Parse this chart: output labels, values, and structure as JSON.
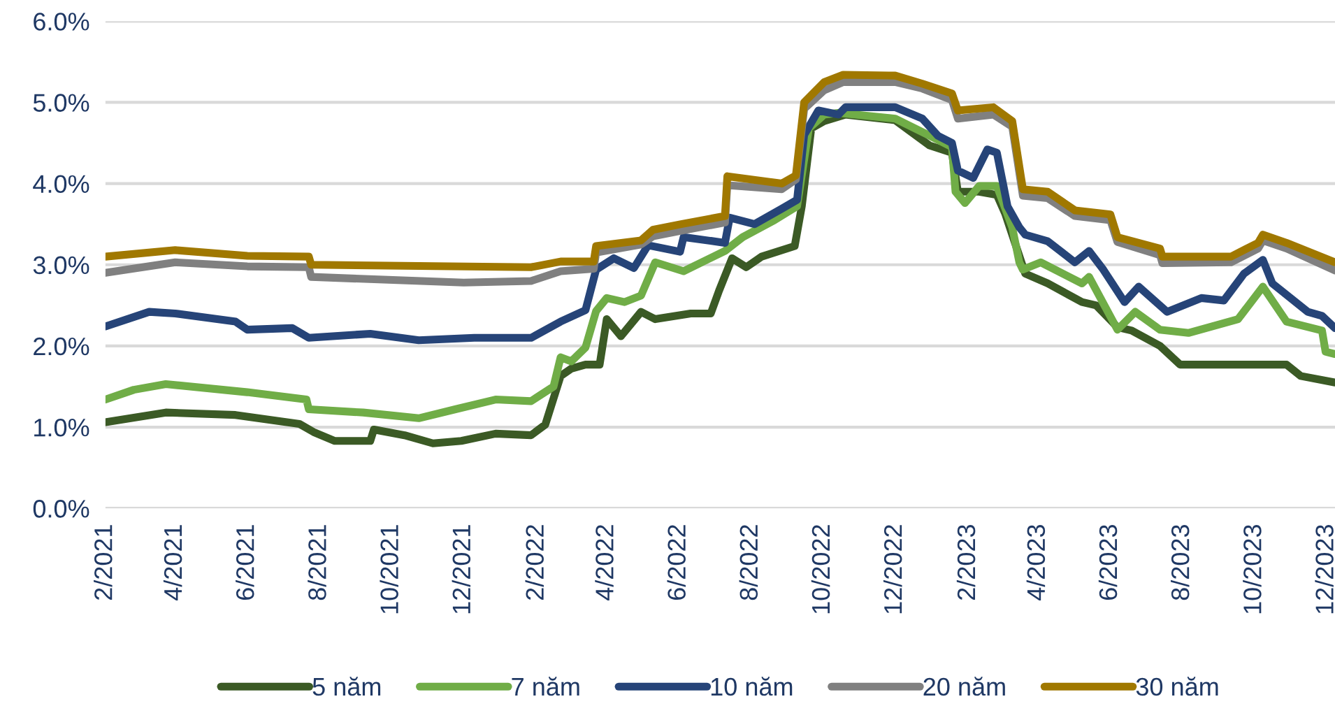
{
  "chart_data": {
    "type": "line",
    "grid": "y",
    "legend": "bottom",
    "line_style": "solid",
    "marker": "none",
    "xlim": [
      "2021-02-01",
      "2023-12-08"
    ],
    "ylim": [
      0,
      6
    ],
    "yticks": [
      {
        "value": 0,
        "label": "0.0%"
      },
      {
        "value": 1,
        "label": "1.0%"
      },
      {
        "value": 2,
        "label": "2.0%"
      },
      {
        "value": 3,
        "label": "3.0%"
      },
      {
        "value": 4,
        "label": "4.0%"
      },
      {
        "value": 5,
        "label": "5.0%"
      },
      {
        "value": 6,
        "label": "6.0%"
      }
    ],
    "xticks": [
      {
        "value": "2021-02-01",
        "label": "2/2021"
      },
      {
        "value": "2021-04-01",
        "label": "4/2021"
      },
      {
        "value": "2021-06-01",
        "label": "6/2021"
      },
      {
        "value": "2021-08-01",
        "label": "8/2021"
      },
      {
        "value": "2021-10-01",
        "label": "10/2021"
      },
      {
        "value": "2021-12-01",
        "label": "12/2021"
      },
      {
        "value": "2022-02-01",
        "label": "2/2022"
      },
      {
        "value": "2022-04-01",
        "label": "4/2022"
      },
      {
        "value": "2022-06-01",
        "label": "6/2022"
      },
      {
        "value": "2022-08-01",
        "label": "8/2022"
      },
      {
        "value": "2022-10-01",
        "label": "10/2022"
      },
      {
        "value": "2022-12-01",
        "label": "12/2022"
      },
      {
        "value": "2023-02-01",
        "label": "2/2023"
      },
      {
        "value": "2023-04-01",
        "label": "4/2023"
      },
      {
        "value": "2023-06-01",
        "label": "6/2023"
      },
      {
        "value": "2023-08-01",
        "label": "8/2023"
      },
      {
        "value": "2023-10-01",
        "label": "10/2023"
      },
      {
        "value": "2023-12-01",
        "label": "12/2023"
      }
    ],
    "series": [
      {
        "name": "5 năm",
        "color": "#3b5a25",
        "x": [
          "2021-02-01",
          "2021-03-24",
          "2021-05-22",
          "2021-07-15",
          "2021-07-27",
          "2021-08-14",
          "2021-09-13",
          "2021-09-16",
          "2021-10-12",
          "2021-11-05",
          "2021-11-29",
          "2021-12-28",
          "2022-01-27",
          "2022-02-08",
          "2022-02-21",
          "2022-03-02",
          "2022-03-14",
          "2022-03-26",
          "2022-04-01",
          "2022-04-13",
          "2022-04-30",
          "2022-05-12",
          "2022-06-11",
          "2022-06-28",
          "2022-07-05",
          "2022-07-16",
          "2022-07-28",
          "2022-08-10",
          "2022-09-07",
          "2022-09-13",
          "2022-09-21",
          "2022-10-02",
          "2022-10-20",
          "2022-12-01",
          "2022-12-30",
          "2023-01-18",
          "2023-01-23",
          "2023-02-10",
          "2023-02-25",
          "2023-03-04",
          "2023-03-21",
          "2023-04-09",
          "2023-05-08",
          "2023-05-20",
          "2023-06-07",
          "2023-06-19",
          "2023-07-13",
          "2023-07-30",
          "2023-09-11",
          "2023-10-28",
          "2023-11-09",
          "2023-12-08"
        ],
        "values": [
          1.06,
          1.18,
          1.15,
          1.04,
          0.94,
          0.83,
          0.83,
          0.97,
          0.9,
          0.8,
          0.83,
          0.92,
          0.9,
          1.03,
          1.63,
          1.72,
          1.77,
          1.77,
          2.33,
          2.12,
          2.42,
          2.33,
          2.4,
          2.4,
          2.68,
          3.08,
          2.97,
          3.1,
          3.23,
          3.72,
          4.68,
          4.77,
          4.85,
          4.78,
          4.47,
          4.38,
          3.9,
          3.9,
          3.86,
          3.63,
          2.89,
          2.77,
          2.54,
          2.5,
          2.23,
          2.19,
          2.0,
          1.77,
          1.77,
          1.77,
          1.63,
          1.55
        ]
      },
      {
        "name": "7 năm",
        "color": "#70ad47",
        "x": [
          "2021-02-01",
          "2021-02-25",
          "2021-03-24",
          "2021-06-01",
          "2021-07-21",
          "2021-07-23",
          "2021-09-07",
          "2021-10-24",
          "2021-11-24",
          "2021-12-28",
          "2022-01-27",
          "2022-02-15",
          "2022-02-21",
          "2022-03-02",
          "2022-03-14",
          "2022-03-23",
          "2022-04-01",
          "2022-04-16",
          "2022-04-30",
          "2022-05-12",
          "2022-06-05",
          "2022-07-10",
          "2022-07-25",
          "2022-08-21",
          "2022-09-09",
          "2022-09-19",
          "2022-10-02",
          "2022-10-14",
          "2022-12-01",
          "2022-12-30",
          "2023-01-18",
          "2023-01-21",
          "2023-01-29",
          "2023-02-10",
          "2023-02-25",
          "2023-03-10",
          "2023-03-16",
          "2023-03-19",
          "2023-04-03",
          "2023-05-08",
          "2023-05-14",
          "2023-06-07",
          "2023-06-22",
          "2023-07-13",
          "2023-08-06",
          "2023-09-17",
          "2023-10-08",
          "2023-10-28",
          "2023-11-27",
          "2023-11-30",
          "2023-12-08"
        ],
        "values": [
          1.34,
          1.46,
          1.53,
          1.43,
          1.34,
          1.22,
          1.18,
          1.11,
          1.22,
          1.34,
          1.32,
          1.5,
          1.86,
          1.81,
          1.98,
          2.43,
          2.59,
          2.54,
          2.62,
          3.03,
          2.92,
          3.17,
          3.34,
          3.55,
          3.72,
          4.68,
          4.85,
          4.87,
          4.8,
          4.59,
          4.45,
          3.9,
          3.76,
          3.97,
          3.97,
          3.46,
          3.03,
          2.94,
          3.03,
          2.77,
          2.85,
          2.2,
          2.42,
          2.2,
          2.16,
          2.33,
          2.73,
          2.3,
          2.19,
          1.93,
          1.9
        ]
      },
      {
        "name": "10 năm",
        "color": "#264478",
        "x": [
          "2021-02-01",
          "2021-03-10",
          "2021-04-01",
          "2021-05-22",
          "2021-06-01",
          "2021-07-09",
          "2021-07-23",
          "2021-09-13",
          "2021-10-24",
          "2021-12-10",
          "2022-01-27",
          "2022-02-21",
          "2022-03-14",
          "2022-03-23",
          "2022-04-07",
          "2022-04-24",
          "2022-05-06",
          "2022-06-02",
          "2022-06-05",
          "2022-07-10",
          "2022-07-14",
          "2022-08-04",
          "2022-08-27",
          "2022-09-09",
          "2022-09-15",
          "2022-09-27",
          "2022-10-14",
          "2022-10-20",
          "2022-12-01",
          "2022-12-24",
          "2023-01-06",
          "2023-01-18",
          "2023-01-23",
          "2023-02-05",
          "2023-02-17",
          "2023-02-25",
          "2023-03-06",
          "2023-03-16",
          "2023-03-21",
          "2023-04-09",
          "2023-05-02",
          "2023-05-14",
          "2023-05-26",
          "2023-06-13",
          "2023-06-25",
          "2023-07-19",
          "2023-08-17",
          "2023-09-05",
          "2023-09-22",
          "2023-10-08",
          "2023-10-16",
          "2023-11-15",
          "2023-11-27",
          "2023-12-08"
        ],
        "values": [
          2.24,
          2.42,
          2.4,
          2.3,
          2.2,
          2.22,
          2.1,
          2.15,
          2.07,
          2.1,
          2.1,
          2.3,
          2.44,
          2.94,
          3.08,
          2.96,
          3.24,
          3.16,
          3.34,
          3.27,
          3.58,
          3.5,
          3.69,
          3.8,
          4.6,
          4.9,
          4.85,
          4.94,
          4.94,
          4.8,
          4.59,
          4.5,
          4.16,
          4.07,
          4.42,
          4.38,
          3.72,
          3.46,
          3.37,
          3.29,
          3.03,
          3.17,
          2.94,
          2.54,
          2.73,
          2.42,
          2.59,
          2.56,
          2.89,
          3.06,
          2.77,
          2.42,
          2.37,
          2.22
        ]
      },
      {
        "name": "20 năm",
        "color": "#808080",
        "x": [
          "2021-02-01",
          "2021-04-01",
          "2021-06-01",
          "2021-07-23",
          "2021-07-25",
          "2021-12-01",
          "2022-01-27",
          "2022-02-21",
          "2022-03-21",
          "2022-03-23",
          "2022-04-30",
          "2022-05-10",
          "2022-06-03",
          "2022-07-10",
          "2022-07-12",
          "2022-08-27",
          "2022-09-08",
          "2022-09-15",
          "2022-10-02",
          "2022-10-18",
          "2022-12-01",
          "2022-12-24",
          "2023-01-18",
          "2023-01-23",
          "2023-02-22",
          "2023-03-10",
          "2023-03-19",
          "2023-04-09",
          "2023-05-02",
          "2023-06-01",
          "2023-06-07",
          "2023-07-13",
          "2023-07-15",
          "2023-09-11",
          "2023-10-04",
          "2023-10-08",
          "2023-10-28",
          "2023-12-08"
        ],
        "values": [
          2.9,
          3.03,
          2.98,
          2.97,
          2.85,
          2.78,
          2.8,
          2.92,
          2.95,
          3.15,
          3.25,
          3.35,
          3.42,
          3.52,
          3.98,
          3.93,
          4.05,
          4.92,
          5.15,
          5.25,
          5.25,
          5.17,
          5.03,
          4.8,
          4.85,
          4.7,
          3.85,
          3.82,
          3.6,
          3.55,
          3.28,
          3.12,
          3.02,
          3.03,
          3.2,
          3.3,
          3.2,
          2.93
        ]
      },
      {
        "name": "30 năm",
        "color": "#a07800",
        "x": [
          "2021-02-01",
          "2021-04-01",
          "2021-06-01",
          "2021-07-23",
          "2021-07-25",
          "2022-01-27",
          "2022-02-21",
          "2022-03-21",
          "2022-03-23",
          "2022-04-30",
          "2022-05-10",
          "2022-06-03",
          "2022-07-10",
          "2022-07-12",
          "2022-08-27",
          "2022-09-08",
          "2022-09-15",
          "2022-10-02",
          "2022-10-18",
          "2022-12-01",
          "2022-12-24",
          "2023-01-18",
          "2023-01-23",
          "2023-02-22",
          "2023-03-10",
          "2023-03-19",
          "2023-04-09",
          "2023-05-02",
          "2023-06-01",
          "2023-06-07",
          "2023-07-13",
          "2023-07-15",
          "2023-09-11",
          "2023-10-04",
          "2023-10-08",
          "2023-10-28",
          "2023-12-08"
        ],
        "values": [
          3.1,
          3.18,
          3.11,
          3.1,
          3.0,
          2.97,
          3.04,
          3.04,
          3.23,
          3.3,
          3.43,
          3.5,
          3.6,
          4.09,
          4.0,
          4.1,
          5.0,
          5.25,
          5.34,
          5.33,
          5.23,
          5.11,
          4.9,
          4.94,
          4.77,
          3.93,
          3.9,
          3.67,
          3.62,
          3.34,
          3.2,
          3.1,
          3.1,
          3.27,
          3.37,
          3.27,
          3.03
        ]
      }
    ]
  }
}
